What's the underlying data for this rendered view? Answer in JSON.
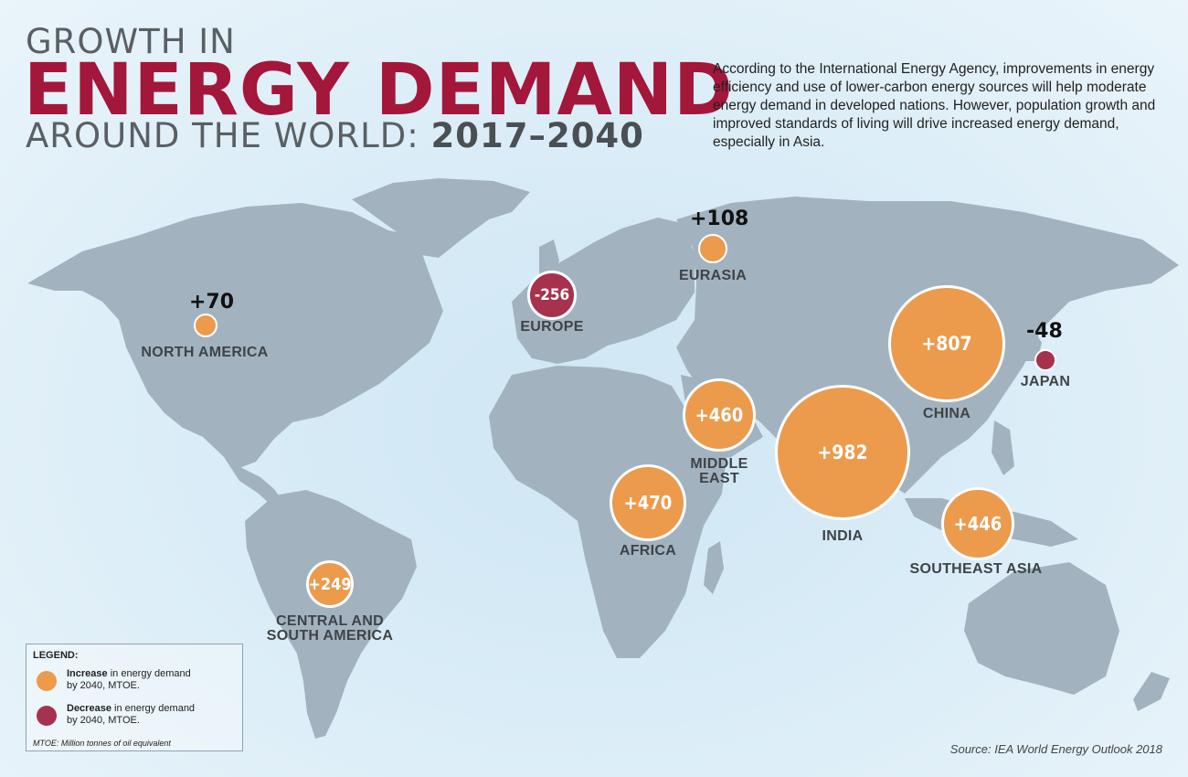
{
  "title": {
    "line1": "GROWTH IN",
    "line2": "ENERGY DEMAND",
    "line3": "AROUND THE WORLD: ",
    "years": "2017–2040"
  },
  "intro": "According to the International Energy Agency, improvements in energy efficiency and use of lower-carbon energy sources will help moderate energy demand in developed nations. However, population growth and improved standards of living will drive increased energy demand, especially in Asia.",
  "regions": {
    "north_america": {
      "label": "NORTH AMERICA",
      "value": "+70"
    },
    "europe": {
      "label": "EUROPE",
      "value": "-256"
    },
    "eurasia": {
      "label": "EURASIA",
      "value": "+108"
    },
    "china": {
      "label": "CHINA",
      "value": "+807"
    },
    "japan": {
      "label": "JAPAN",
      "value": "-48"
    },
    "middle_east": {
      "label_line1": "MIDDLE",
      "label_line2": "EAST",
      "value": "+460"
    },
    "india": {
      "label": "INDIA",
      "value": "+982"
    },
    "africa": {
      "label": "AFRICA",
      "value": "+470"
    },
    "southeast_asia": {
      "label": "SOUTHEAST ASIA",
      "value": "+446"
    },
    "central_south_america": {
      "label_line1": "CENTRAL AND",
      "label_line2": "SOUTH AMERICA",
      "value": "+249"
    }
  },
  "legend": {
    "title": "LEGEND:",
    "increase_bold": "Increase",
    "increase_rest": " in energy demand",
    "increase_line2": "by 2040, MTOE.",
    "decrease_bold": "Decrease",
    "decrease_rest": " in energy demand",
    "decrease_line2": "by 2040, MTOE.",
    "note": "MTOE: Million tonnes of oil equivalent"
  },
  "source": "Source: IEA World Energy Outlook 2018",
  "colors": {
    "increase": "#ec9a4c",
    "decrease": "#a6324e",
    "title_accent": "#a3173a",
    "land": "#a2b3bf"
  }
}
